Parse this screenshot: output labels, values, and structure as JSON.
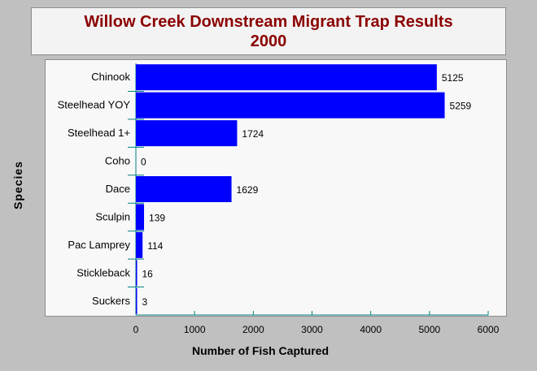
{
  "chart_data": {
    "type": "bar",
    "orientation": "horizontal",
    "title": [
      "Willow Creek Downstream Migrant Trap Results",
      "2000"
    ],
    "xlabel": "Number of Fish Captured",
    "ylabel": "Species",
    "categories": [
      "Chinook",
      "Steelhead YOY",
      "Steelhead 1+",
      "Coho",
      "Dace",
      "Sculpin",
      "Pac Lamprey",
      "Stickleback",
      "Suckers"
    ],
    "values": [
      5125,
      5259,
      1724,
      0,
      1629,
      139,
      114,
      16,
      3
    ],
    "xlim": [
      0,
      6000
    ],
    "xticks": [
      0,
      1000,
      2000,
      3000,
      4000,
      5000,
      6000
    ],
    "grid": false,
    "legend": "none",
    "colors": {
      "bar": "#0000ff",
      "axis": "#008080",
      "title": "#8b0000"
    }
  }
}
